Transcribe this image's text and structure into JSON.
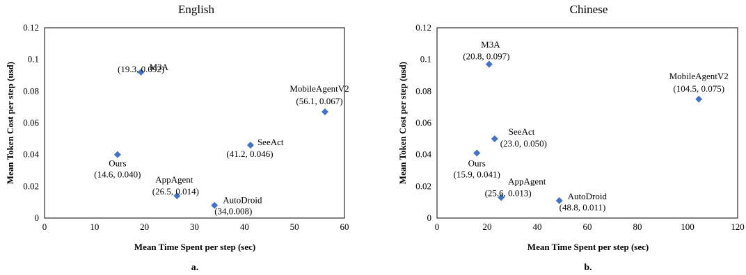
{
  "chart_data": [
    {
      "type": "scatter",
      "title": "English",
      "xlabel": "Mean Time Spent per step (sec)",
      "ylabel": "Mean Token Cost per step (usd)",
      "xlim": [
        0,
        60
      ],
      "ylim": [
        0,
        0.12
      ],
      "x_ticks": [
        "0",
        "10",
        "20",
        "30",
        "40",
        "50",
        "60"
      ],
      "y_ticks": [
        "0",
        "0.02",
        "0.04",
        "0.06",
        "0.08",
        "0.1",
        "0.12"
      ],
      "grid": false,
      "marker_color": "#4472C4",
      "subfigure_label": "a.",
      "points": [
        {
          "name": "M3A",
          "label": "(19.3, 0.092)",
          "x": 19.3,
          "y": 0.092
        },
        {
          "name": "MobileAgentV2",
          "label": "(56.1, 0.067)",
          "x": 56.1,
          "y": 0.067
        },
        {
          "name": "SeeAct",
          "label": "(41.2, 0.046)",
          "x": 41.2,
          "y": 0.046
        },
        {
          "name": "Ours",
          "label": "(14.6, 0.040)",
          "x": 14.6,
          "y": 0.04
        },
        {
          "name": "AppAgent",
          "label": "(26.5, 0.014)",
          "x": 26.5,
          "y": 0.014
        },
        {
          "name": "AutoDroid",
          "label": "(34,0.008)",
          "x": 34,
          "y": 0.008
        }
      ]
    },
    {
      "type": "scatter",
      "title": "Chinese",
      "xlabel": "Mean Time Spent per step (sec)",
      "ylabel": "Mean Token Cost per step (usd)",
      "xlim": [
        0,
        120
      ],
      "ylim": [
        0,
        0.12
      ],
      "x_ticks": [
        "0",
        "20",
        "40",
        "60",
        "80",
        "100",
        "120"
      ],
      "y_ticks": [
        "0",
        "0.02",
        "0.04",
        "0.06",
        "0.08",
        "0.1",
        "0.12"
      ],
      "grid": false,
      "marker_color": "#4472C4",
      "subfigure_label": "b.",
      "points": [
        {
          "name": "M3A",
          "label": "(20.8, 0.097)",
          "x": 20.8,
          "y": 0.097
        },
        {
          "name": "MobileAgentV2",
          "label": "(104.5, 0.075)",
          "x": 104.5,
          "y": 0.075
        },
        {
          "name": "SeeAct",
          "label": "(23.0, 0.050)",
          "x": 23.0,
          "y": 0.05
        },
        {
          "name": "Ours",
          "label": "(15.9, 0.041)",
          "x": 15.9,
          "y": 0.041
        },
        {
          "name": "AppAgent",
          "label": "(25.6, 0.013)",
          "x": 25.6,
          "y": 0.013
        },
        {
          "name": "AutoDroid",
          "label": "(48.8, 0.011)",
          "x": 48.8,
          "y": 0.011
        }
      ]
    }
  ]
}
